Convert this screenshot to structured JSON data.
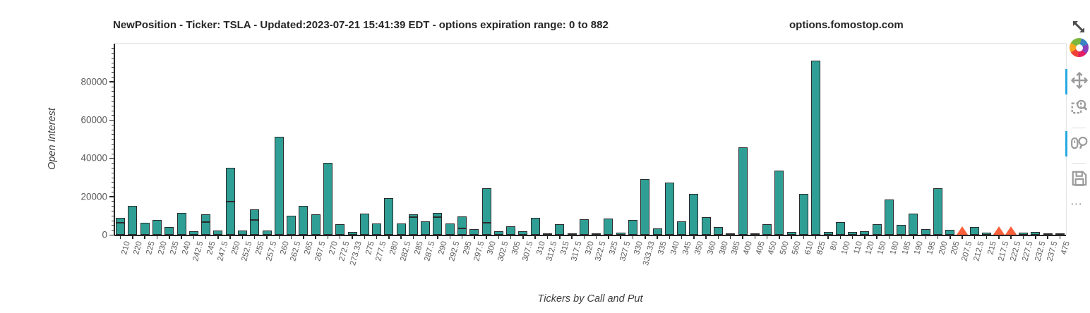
{
  "header": {
    "title": "NewPosition - Ticker: TSLA - Updated:2023-07-21 15:41:39 EDT - options expiration range: 0 to 882",
    "site": "options.fomostop.com"
  },
  "chart_data": {
    "type": "bar",
    "title": "NewPosition - Ticker: TSLA - Updated:2023-07-21 15:41:39 EDT - options expiration range: 0 to 882",
    "xlabel": "Tickers by Call and Put",
    "ylabel": "Open Interest",
    "ylim": [
      0,
      100000
    ],
    "yticks": [
      0,
      20000,
      40000,
      60000,
      80000
    ],
    "grid": false,
    "legend": "none",
    "categories": [
      "210",
      "220",
      "225",
      "230",
      "235",
      "240",
      "242.5",
      "245",
      "247.5",
      "250",
      "252.5",
      "255",
      "257.5",
      "260",
      "262.5",
      "265",
      "267.5",
      "270",
      "272.5",
      "273.33",
      "275",
      "277.5",
      "280",
      "282.5",
      "285",
      "287.5",
      "290",
      "292.5",
      "295",
      "297.5",
      "300",
      "302.5",
      "305",
      "307.5",
      "310",
      "312.5",
      "315",
      "317.5",
      "320",
      "322.5",
      "325",
      "327.5",
      "330",
      "333.33",
      "335",
      "340",
      "345",
      "350",
      "360",
      "380",
      "385",
      "400",
      "405",
      "450",
      "500",
      "560",
      "610",
      "825",
      "80",
      "100",
      "110",
      "120",
      "150",
      "180",
      "185",
      "190",
      "195",
      "200",
      "205",
      "207.5",
      "212.5",
      "215",
      "217.5",
      "222.5",
      "227.5",
      "232.5",
      "237.5",
      "475"
    ],
    "values": [
      8900,
      15000,
      6400,
      7900,
      4000,
      11300,
      1700,
      10500,
      2300,
      35000,
      2200,
      13400,
      2100,
      51300,
      9800,
      15100,
      10700,
      37400,
      5500,
      1500,
      11000,
      6000,
      19200,
      5800,
      10800,
      7000,
      11500,
      5800,
      9700,
      3100,
      24400,
      1700,
      4500,
      1700,
      8700,
      700,
      5400,
      800,
      8100,
      700,
      8600,
      1200,
      7800,
      29200,
      3200,
      27200,
      7000,
      21300,
      9300,
      4000,
      300,
      45600,
      500,
      5600,
      33600,
      1500,
      21200,
      91000,
      1400,
      6700,
      1500,
      1800,
      5500,
      18300,
      5000,
      11000,
      2900,
      24200,
      2700,
      300,
      4000,
      1200,
      200,
      300,
      1200,
      1300,
      700,
      900
    ],
    "inner_marker_lines": [
      6300,
      null,
      null,
      null,
      null,
      null,
      null,
      6700,
      null,
      17400,
      null,
      7800,
      null,
      null,
      null,
      null,
      null,
      null,
      null,
      null,
      null,
      null,
      null,
      null,
      9100,
      null,
      9300,
      null,
      3200,
      null,
      6300,
      null,
      null,
      null,
      null,
      null,
      null,
      null,
      null,
      null,
      null,
      null,
      null,
      null,
      null,
      null,
      null,
      null,
      null,
      null,
      null,
      null,
      null,
      null,
      null,
      null,
      null,
      null,
      null,
      null,
      null,
      null,
      null,
      null,
      null,
      null,
      null,
      null,
      null,
      null,
      null,
      null,
      null,
      null,
      null,
      null,
      null,
      null
    ],
    "put_triangle_markers": [
      0,
      0,
      0,
      0,
      0,
      0,
      0,
      0,
      0,
      0,
      0,
      0,
      0,
      0,
      0,
      0,
      0,
      0,
      0,
      0,
      0,
      0,
      0,
      0,
      0,
      0,
      0,
      0,
      0,
      0,
      0,
      0,
      0,
      0,
      0,
      0,
      0,
      0,
      0,
      0,
      0,
      0,
      0,
      0,
      0,
      0,
      0,
      0,
      0,
      0,
      0,
      0,
      0,
      0,
      0,
      0,
      0,
      0,
      0,
      0,
      0,
      0,
      0,
      0,
      0,
      0,
      0,
      0,
      0,
      1,
      0,
      0,
      1,
      1,
      0,
      0,
      0,
      0
    ],
    "colors": {
      "bar_fill": "#2f9e95",
      "bar_border": "#2b2b2b",
      "triangle": "#fb603a",
      "active_tool_indicator": "#26aae1"
    }
  },
  "toolbar": {
    "tools": [
      {
        "label": "fullscreen",
        "active": false
      },
      {
        "label": "bokeh-logo",
        "active": false
      },
      {
        "label": "pan",
        "active": true
      },
      {
        "label": "box-zoom",
        "active": false
      },
      {
        "label": "wheel-zoom",
        "active": true
      },
      {
        "label": "save",
        "active": false
      },
      {
        "label": "more",
        "active": false
      }
    ],
    "more_glyph": "⋯"
  }
}
